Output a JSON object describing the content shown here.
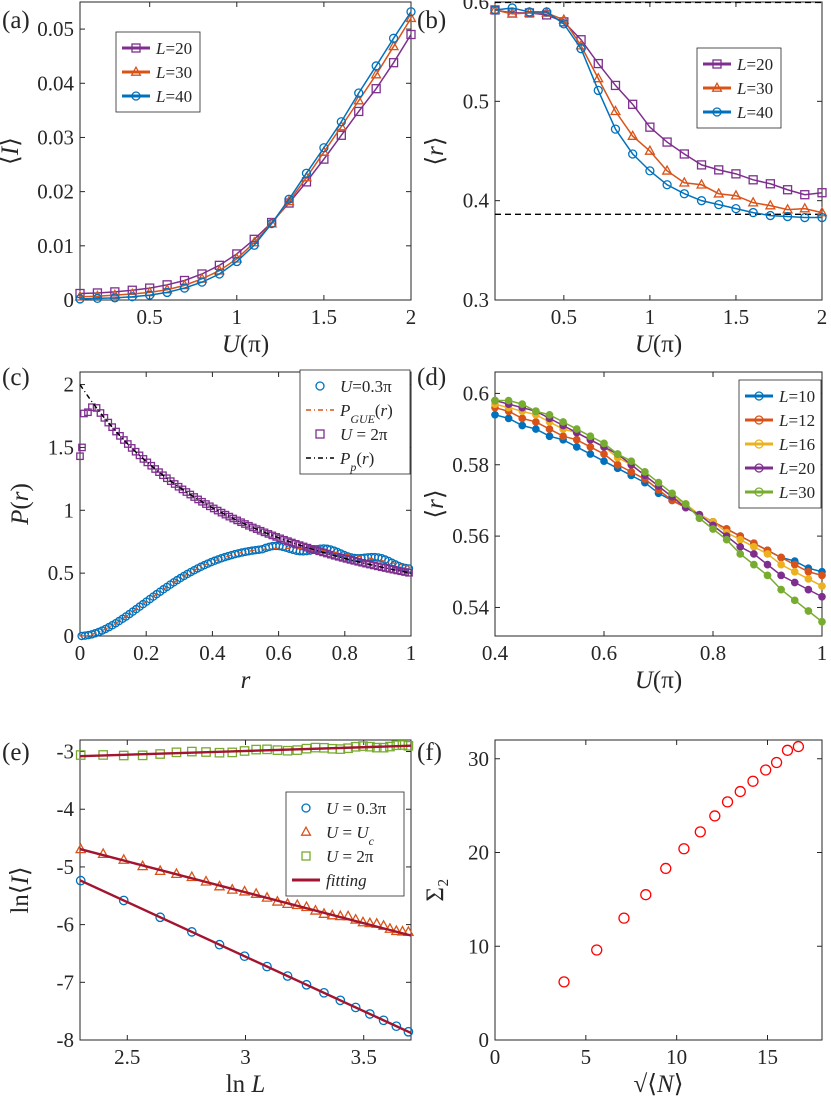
{
  "chart_data": [
    {
      "id": "a",
      "type": "line",
      "panel_label": "(a)",
      "xlabel": "U(π)",
      "ylabel": "⟨I⟩",
      "xlim": [
        0.1,
        2
      ],
      "ylim": [
        0,
        0.055
      ],
      "xticks": [
        0.5,
        1,
        1.5,
        2
      ],
      "yticks": [
        0,
        0.01,
        0.02,
        0.03,
        0.04,
        0.05
      ],
      "ytick_labels": [
        "0",
        "0.01",
        "0.02",
        "0.03",
        "0.04",
        "0.05"
      ],
      "grid": false,
      "legend": "top-left",
      "x": [
        0.1,
        0.2,
        0.3,
        0.4,
        0.5,
        0.6,
        0.7,
        0.8,
        0.9,
        1.0,
        1.1,
        1.2,
        1.3,
        1.4,
        1.5,
        1.6,
        1.7,
        1.8,
        1.9,
        2.0
      ],
      "series": [
        {
          "name": "L=20",
          "color": "#7E2F8E",
          "marker": "square",
          "values": [
            0.0012,
            0.0013,
            0.0015,
            0.0018,
            0.0022,
            0.0028,
            0.0036,
            0.0048,
            0.0064,
            0.0085,
            0.0112,
            0.0143,
            0.0179,
            0.0218,
            0.026,
            0.0304,
            0.0348,
            0.039,
            0.0438,
            0.049
          ]
        },
        {
          "name": "L=30",
          "color": "#D95319",
          "marker": "triangle",
          "values": [
            0.0006,
            0.0007,
            0.0009,
            0.0011,
            0.0014,
            0.0019,
            0.0027,
            0.0039,
            0.0054,
            0.0076,
            0.0106,
            0.0141,
            0.0182,
            0.0226,
            0.0273,
            0.032,
            0.0368,
            0.0416,
            0.0468,
            0.052
          ]
        },
        {
          "name": "L=40",
          "color": "#0072BD",
          "marker": "circle",
          "values": [
            0.0002,
            0.0003,
            0.0004,
            0.0006,
            0.0009,
            0.0014,
            0.0022,
            0.0033,
            0.0048,
            0.0071,
            0.0101,
            0.0141,
            0.0186,
            0.0234,
            0.0281,
            0.0329,
            0.0382,
            0.0432,
            0.0483,
            0.0532
          ]
        }
      ]
    },
    {
      "id": "b",
      "type": "line",
      "panel_label": "(b)",
      "xlabel": "U(π)",
      "ylabel": "⟨r⟩",
      "xlim": [
        0.1,
        2
      ],
      "ylim": [
        0.3,
        0.6
      ],
      "xticks": [
        0.5,
        1,
        1.5,
        2
      ],
      "yticks": [
        0.3,
        0.4,
        0.5,
        0.6
      ],
      "ytick_labels": [
        "0.3",
        "0.4",
        "0.5",
        "0.6"
      ],
      "grid": false,
      "legend": "right",
      "reference_lines": [
        0.5996,
        0.3863
      ],
      "x": [
        0.1,
        0.2,
        0.3,
        0.4,
        0.5,
        0.6,
        0.7,
        0.8,
        0.9,
        1.0,
        1.1,
        1.2,
        1.3,
        1.4,
        1.5,
        1.6,
        1.7,
        1.8,
        1.9,
        2.0
      ],
      "series": [
        {
          "name": "L=20",
          "color": "#7E2F8E",
          "marker": "square",
          "values": [
            0.592,
            0.589,
            0.589,
            0.587,
            0.58,
            0.562,
            0.538,
            0.516,
            0.497,
            0.474,
            0.459,
            0.447,
            0.436,
            0.431,
            0.427,
            0.421,
            0.417,
            0.411,
            0.406,
            0.408
          ]
        },
        {
          "name": "L=30",
          "color": "#D95319",
          "marker": "triangle",
          "values": [
            0.592,
            0.588,
            0.589,
            0.589,
            0.582,
            0.556,
            0.523,
            0.49,
            0.465,
            0.45,
            0.43,
            0.418,
            0.416,
            0.407,
            0.405,
            0.398,
            0.395,
            0.391,
            0.392,
            0.388
          ]
        },
        {
          "name": "L=40",
          "color": "#0072BD",
          "marker": "circle",
          "values": [
            0.592,
            0.594,
            0.59,
            0.59,
            0.578,
            0.553,
            0.511,
            0.472,
            0.447,
            0.43,
            0.416,
            0.407,
            0.4,
            0.396,
            0.392,
            0.388,
            0.385,
            0.384,
            0.383,
            0.383
          ]
        }
      ]
    },
    {
      "id": "c",
      "type": "scatter",
      "panel_label": "(c)",
      "xlabel": "r",
      "ylabel": "P(r)",
      "xlim": [
        0,
        1
      ],
      "ylim": [
        0,
        2.1
      ],
      "xticks": [
        0,
        0.2,
        0.4,
        0.6,
        0.8,
        1
      ],
      "yticks": [
        0,
        0.5,
        1,
        1.5,
        2
      ],
      "ytick_labels": [
        "0",
        "0.5",
        "1",
        "1.5",
        "2"
      ],
      "grid": false,
      "legend": "top-right",
      "legend_entries": [
        "U=0.3π",
        "P_GUE(r)",
        "U = 2π",
        "P_p(r)"
      ],
      "series": [
        {
          "name": "U=0.3π",
          "color": "#0072BD",
          "marker": "circle",
          "kind": "markers",
          "function": "P_GUE(r)"
        },
        {
          "name": "P_GUE(r)",
          "color": "#D95319",
          "kind": "dash-dot",
          "function": "P_GUE(r)"
        },
        {
          "name": "U = 2π",
          "color": "#7E2F8E",
          "marker": "square",
          "kind": "markers",
          "function": "P_p(r)"
        },
        {
          "name": "P_p(r)",
          "color": "#000000",
          "kind": "dash-dot",
          "function": "P_p(r)"
        }
      ]
    },
    {
      "id": "d",
      "type": "line",
      "panel_label": "(d)",
      "xlabel": "U(π)",
      "ylabel": "⟨r⟩",
      "xlim": [
        0.4,
        1
      ],
      "ylim": [
        0.532,
        0.606
      ],
      "xticks": [
        0.4,
        0.6,
        0.8,
        1
      ],
      "yticks": [
        0.54,
        0.56,
        0.58,
        0.6
      ],
      "ytick_labels": [
        "0.54",
        "0.56",
        "0.58",
        "0.6"
      ],
      "grid": false,
      "legend": "top-right",
      "x": [
        0.4,
        0.425,
        0.45,
        0.475,
        0.5,
        0.525,
        0.55,
        0.575,
        0.6,
        0.625,
        0.65,
        0.675,
        0.7,
        0.725,
        0.75,
        0.775,
        0.8,
        0.825,
        0.85,
        0.875,
        0.9,
        0.925,
        0.95,
        0.975,
        1.0
      ],
      "series": [
        {
          "name": "L=10",
          "color": "#0072BD",
          "marker": "circle",
          "values": [
            0.594,
            0.593,
            0.591,
            0.59,
            0.588,
            0.587,
            0.585,
            0.583,
            0.581,
            0.579,
            0.577,
            0.575,
            0.572,
            0.57,
            0.568,
            0.566,
            0.564,
            0.562,
            0.56,
            0.558,
            0.556,
            0.554,
            0.553,
            0.551,
            0.55
          ]
        },
        {
          "name": "L=12",
          "color": "#D95319",
          "marker": "circle",
          "values": [
            0.596,
            0.595,
            0.593,
            0.592,
            0.59,
            0.588,
            0.587,
            0.585,
            0.583,
            0.58,
            0.578,
            0.576,
            0.573,
            0.57,
            0.568,
            0.566,
            0.564,
            0.562,
            0.56,
            0.558,
            0.556,
            0.554,
            0.552,
            0.55,
            0.549
          ]
        },
        {
          "name": "L=16",
          "color": "#EDB120",
          "marker": "circle",
          "values": [
            0.597,
            0.596,
            0.595,
            0.594,
            0.592,
            0.59,
            0.589,
            0.587,
            0.585,
            0.582,
            0.58,
            0.577,
            0.574,
            0.571,
            0.569,
            0.566,
            0.564,
            0.561,
            0.559,
            0.557,
            0.555,
            0.552,
            0.55,
            0.548,
            0.546
          ]
        },
        {
          "name": "L=20",
          "color": "#7E2F8E",
          "marker": "circle",
          "values": [
            0.598,
            0.597,
            0.596,
            0.595,
            0.593,
            0.591,
            0.589,
            0.587,
            0.585,
            0.583,
            0.58,
            0.577,
            0.574,
            0.571,
            0.568,
            0.566,
            0.563,
            0.56,
            0.557,
            0.555,
            0.552,
            0.549,
            0.547,
            0.545,
            0.543
          ]
        },
        {
          "name": "L=30",
          "color": "#77AC30",
          "marker": "circle",
          "values": [
            0.598,
            0.598,
            0.597,
            0.595,
            0.594,
            0.592,
            0.59,
            0.588,
            0.586,
            0.583,
            0.581,
            0.578,
            0.575,
            0.572,
            0.569,
            0.565,
            0.562,
            0.559,
            0.555,
            0.552,
            0.549,
            0.545,
            0.542,
            0.539,
            0.536
          ]
        }
      ]
    },
    {
      "id": "e",
      "type": "line",
      "panel_label": "(e)",
      "xlabel": "ln L",
      "ylabel": "ln⟨I⟩",
      "xlim": [
        2.3,
        3.7
      ],
      "ylim": [
        -8,
        -2.8
      ],
      "xticks": [
        2.5,
        3,
        3.5
      ],
      "yticks": [
        -8,
        -7,
        -6,
        -5,
        -4,
        -3
      ],
      "ytick_labels": [
        "-8",
        "-7",
        "-6",
        "-5",
        "-4",
        "-3"
      ],
      "grid": false,
      "legend": "right",
      "x": [
        2.303,
        2.398,
        2.485,
        2.565,
        2.639,
        2.708,
        2.773,
        2.833,
        2.89,
        2.944,
        2.996,
        3.045,
        3.091,
        3.135,
        3.178,
        3.219,
        3.258,
        3.296,
        3.332,
        3.367,
        3.401,
        3.434,
        3.466,
        3.497,
        3.526,
        3.555,
        3.584,
        3.611,
        3.638,
        3.664,
        3.689
      ],
      "series": [
        {
          "name": "U = 0.3π",
          "color": "#0072BD",
          "marker": "circle",
          "kind": "markers",
          "fit": {
            "slope": -1.89,
            "intercept": -0.885
          }
        },
        {
          "name": "U = U_c",
          "color": "#D95319",
          "marker": "triangle",
          "kind": "markers",
          "fit": {
            "slope": -1.07,
            "intercept": -2.23
          }
        },
        {
          "name": "U = 2π",
          "color": "#77AC30",
          "marker": "square",
          "kind": "markers",
          "fit": {
            "slope": 0.13,
            "intercept": -3.38
          }
        },
        {
          "name": "fitting",
          "color": "#A2142F",
          "kind": "line"
        }
      ]
    },
    {
      "id": "f",
      "type": "scatter",
      "panel_label": "(f)",
      "xlabel": "√⟨N⟩",
      "ylabel": "Σ₂",
      "xlim": [
        0,
        18
      ],
      "ylim": [
        0,
        32
      ],
      "xticks": [
        0,
        5,
        10,
        15
      ],
      "yticks": [
        0,
        10,
        20,
        30
      ],
      "ytick_labels": [
        "0",
        "10",
        "20",
        "30"
      ],
      "grid": false,
      "series": [
        {
          "name": "",
          "color": "#FF0000",
          "marker": "circle",
          "x": [
            3.8,
            5.6,
            7.1,
            8.3,
            9.4,
            10.4,
            11.3,
            12.1,
            12.8,
            13.5,
            14.2,
            14.9,
            15.5,
            16.1,
            16.7
          ],
          "values": [
            6.2,
            9.6,
            13.0,
            15.5,
            18.3,
            20.4,
            22.2,
            23.9,
            25.4,
            26.5,
            27.6,
            28.8,
            29.6,
            30.9,
            31.3
          ]
        }
      ]
    }
  ]
}
